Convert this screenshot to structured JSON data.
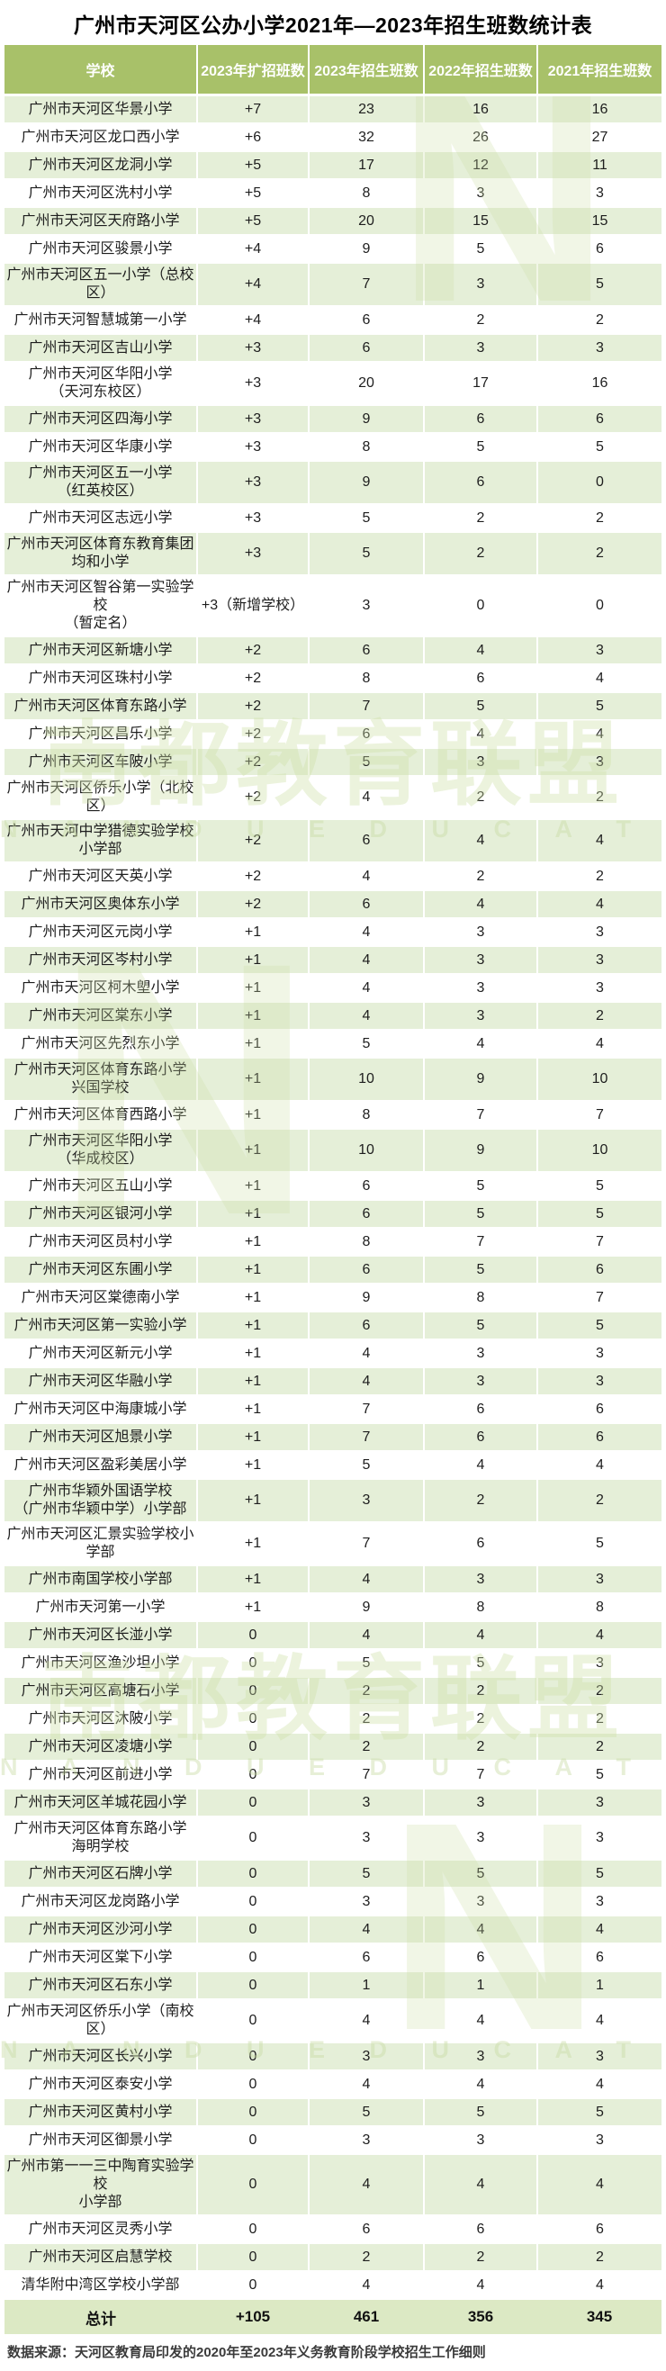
{
  "title": "广州市天河区公办小学2021年—2023年招生班数统计表",
  "colors": {
    "header_green": "#a8c169",
    "row_green": "#e5efd8",
    "total_green": "#dce9c4",
    "watermark_green": "#cfe0a8"
  },
  "watermark": {
    "cn": "南都教育联盟",
    "en": "N A N D U   E D U C A T I O N",
    "logo": "N"
  },
  "table": {
    "columns": [
      "学校",
      "2023年扩招班数",
      "2023年招生班数",
      "2022年招生班数",
      "2021年招生班数"
    ],
    "rows": [
      [
        "广州市天河区华景小学",
        "+7",
        "23",
        "16",
        "16"
      ],
      [
        "广州市天河区龙口西小学",
        "+6",
        "32",
        "26",
        "27"
      ],
      [
        "广州市天河区龙洞小学",
        "+5",
        "17",
        "12",
        "11"
      ],
      [
        "广州市天河区洗村小学",
        "+5",
        "8",
        "3",
        "3"
      ],
      [
        "广州市天河区天府路小学",
        "+5",
        "20",
        "15",
        "15"
      ],
      [
        "广州市天河区骏景小学",
        "+4",
        "9",
        "5",
        "6"
      ],
      [
        "广州市天河区五一小学（总校区）",
        "+4",
        "7",
        "3",
        "5"
      ],
      [
        "广州市天河智慧城第一小学",
        "+4",
        "6",
        "2",
        "2"
      ],
      [
        "广州市天河区吉山小学",
        "+3",
        "6",
        "3",
        "3"
      ],
      [
        "广州市天河区华阳小学\n（天河东校区）",
        "+3",
        "20",
        "17",
        "16"
      ],
      [
        "广州市天河区四海小学",
        "+3",
        "9",
        "6",
        "6"
      ],
      [
        "广州市天河区华康小学",
        "+3",
        "8",
        "5",
        "5"
      ],
      [
        "广州市天河区五一小学\n（红英校区）",
        "+3",
        "9",
        "6",
        "0"
      ],
      [
        "广州市天河区志远小学",
        "+3",
        "5",
        "2",
        "2"
      ],
      [
        "广州市天河区体育东教育集团\n均和小学",
        "+3",
        "5",
        "2",
        "2"
      ],
      [
        "广州市天河区智谷第一实验学校\n（暂定名）",
        "+3（新增学校）",
        "3",
        "0",
        "0"
      ],
      [
        "广州市天河区新塘小学",
        "+2",
        "6",
        "4",
        "3"
      ],
      [
        "广州市天河区珠村小学",
        "+2",
        "8",
        "6",
        "4"
      ],
      [
        "广州市天河区体育东路小学",
        "+2",
        "7",
        "5",
        "5"
      ],
      [
        "广州市天河区昌乐小学",
        "+2",
        "6",
        "4",
        "4"
      ],
      [
        "广州市天河区车陂小学",
        "+2",
        "5",
        "3",
        "3"
      ],
      [
        "广州市天河区侨乐小学（北校区）",
        "+2",
        "4",
        "2",
        "2"
      ],
      [
        "广州市天河中学猎德实验学校\n小学部",
        "+2",
        "6",
        "4",
        "4"
      ],
      [
        "广州市天河区天英小学",
        "+2",
        "4",
        "2",
        "2"
      ],
      [
        "广州市天河区奥体东小学",
        "+2",
        "6",
        "4",
        "4"
      ],
      [
        "广州市天河区元岗小学",
        "+1",
        "4",
        "3",
        "3"
      ],
      [
        "广州市天河区岑村小学",
        "+1",
        "4",
        "3",
        "3"
      ],
      [
        "广州市天河区柯木塱小学",
        "+1",
        "4",
        "3",
        "3"
      ],
      [
        "广州市天河区棠东小学",
        "+1",
        "4",
        "3",
        "2"
      ],
      [
        "广州市天河区先烈东小学",
        "+1",
        "5",
        "4",
        "4"
      ],
      [
        "广州市天河区体育东路小学\n兴国学校",
        "+1",
        "10",
        "9",
        "10"
      ],
      [
        "广州市天河区体育西路小学",
        "+1",
        "8",
        "7",
        "7"
      ],
      [
        "广州市天河区华阳小学\n（华成校区）",
        "+1",
        "10",
        "9",
        "10"
      ],
      [
        "广州市天河区五山小学",
        "+1",
        "6",
        "5",
        "5"
      ],
      [
        "广州市天河区银河小学",
        "+1",
        "6",
        "5",
        "5"
      ],
      [
        "广州市天河区员村小学",
        "+1",
        "8",
        "7",
        "7"
      ],
      [
        "广州市天河区东圃小学",
        "+1",
        "6",
        "5",
        "6"
      ],
      [
        "广州市天河区棠德南小学",
        "+1",
        "9",
        "8",
        "7"
      ],
      [
        "广州市天河区第一实验小学",
        "+1",
        "6",
        "5",
        "5"
      ],
      [
        "广州市天河区新元小学",
        "+1",
        "4",
        "3",
        "3"
      ],
      [
        "广州市天河区华融小学",
        "+1",
        "4",
        "3",
        "3"
      ],
      [
        "广州市天河区中海康城小学",
        "+1",
        "7",
        "6",
        "6"
      ],
      [
        "广州市天河区旭景小学",
        "+1",
        "7",
        "6",
        "6"
      ],
      [
        "广州市天河区盈彩美居小学",
        "+1",
        "5",
        "4",
        "4"
      ],
      [
        "广州市华颖外国语学校\n（广州市华颖中学）小学部",
        "+1",
        "3",
        "2",
        "2"
      ],
      [
        "广州市天河区汇景实验学校小学部",
        "+1",
        "7",
        "6",
        "5"
      ],
      [
        "广州市南国学校小学部",
        "+1",
        "4",
        "3",
        "3"
      ],
      [
        "广州市天河第一小学",
        "+1",
        "9",
        "8",
        "8"
      ],
      [
        "广州市天河区长湴小学",
        "0",
        "4",
        "4",
        "4"
      ],
      [
        "广州市天河区渔沙坦小学",
        "0",
        "5",
        "5",
        "3"
      ],
      [
        "广州市天河区高塘石小学",
        "0",
        "2",
        "2",
        "2"
      ],
      [
        "广州市天河区沐陂小学",
        "0",
        "2",
        "2",
        "2"
      ],
      [
        "广州市天河区凌塘小学",
        "0",
        "2",
        "2",
        "2"
      ],
      [
        "广州市天河区前进小学",
        "0",
        "7",
        "7",
        "5"
      ],
      [
        "广州市天河区羊城花园小学",
        "0",
        "3",
        "3",
        "3"
      ],
      [
        "广州市天河区体育东路小学\n海明学校",
        "0",
        "3",
        "3",
        "3"
      ],
      [
        "广州市天河区石牌小学",
        "0",
        "5",
        "5",
        "5"
      ],
      [
        "广州市天河区龙岗路小学",
        "0",
        "3",
        "3",
        "3"
      ],
      [
        "广州市天河区沙河小学",
        "0",
        "4",
        "4",
        "4"
      ],
      [
        "广州市天河区棠下小学",
        "0",
        "6",
        "6",
        "6"
      ],
      [
        "广州市天河区石东小学",
        "0",
        "1",
        "1",
        "1"
      ],
      [
        "广州市天河区侨乐小学（南校区）",
        "0",
        "4",
        "4",
        "4"
      ],
      [
        "广州市天河区长兴小学",
        "0",
        "3",
        "3",
        "3"
      ],
      [
        "广州市天河区泰安小学",
        "0",
        "4",
        "4",
        "4"
      ],
      [
        "广州市天河区黄村小学",
        "0",
        "5",
        "5",
        "5"
      ],
      [
        "广州市天河区御景小学",
        "0",
        "3",
        "3",
        "3"
      ],
      [
        "广州市第一一三中陶育实验学校\n小学部",
        "0",
        "4",
        "4",
        "4"
      ],
      [
        "广州市天河区灵秀小学",
        "0",
        "6",
        "6",
        "6"
      ],
      [
        "广州市天河区启慧学校",
        "0",
        "2",
        "2",
        "2"
      ],
      [
        "清华附中湾区学校小学部",
        "0",
        "4",
        "4",
        "4"
      ]
    ],
    "total": [
      "总计",
      "+105",
      "461",
      "356",
      "345"
    ]
  },
  "footer": {
    "source": "数据来源：天河区教育局印发的2020年至2023年义务教育阶段学校招生工作细则"
  }
}
